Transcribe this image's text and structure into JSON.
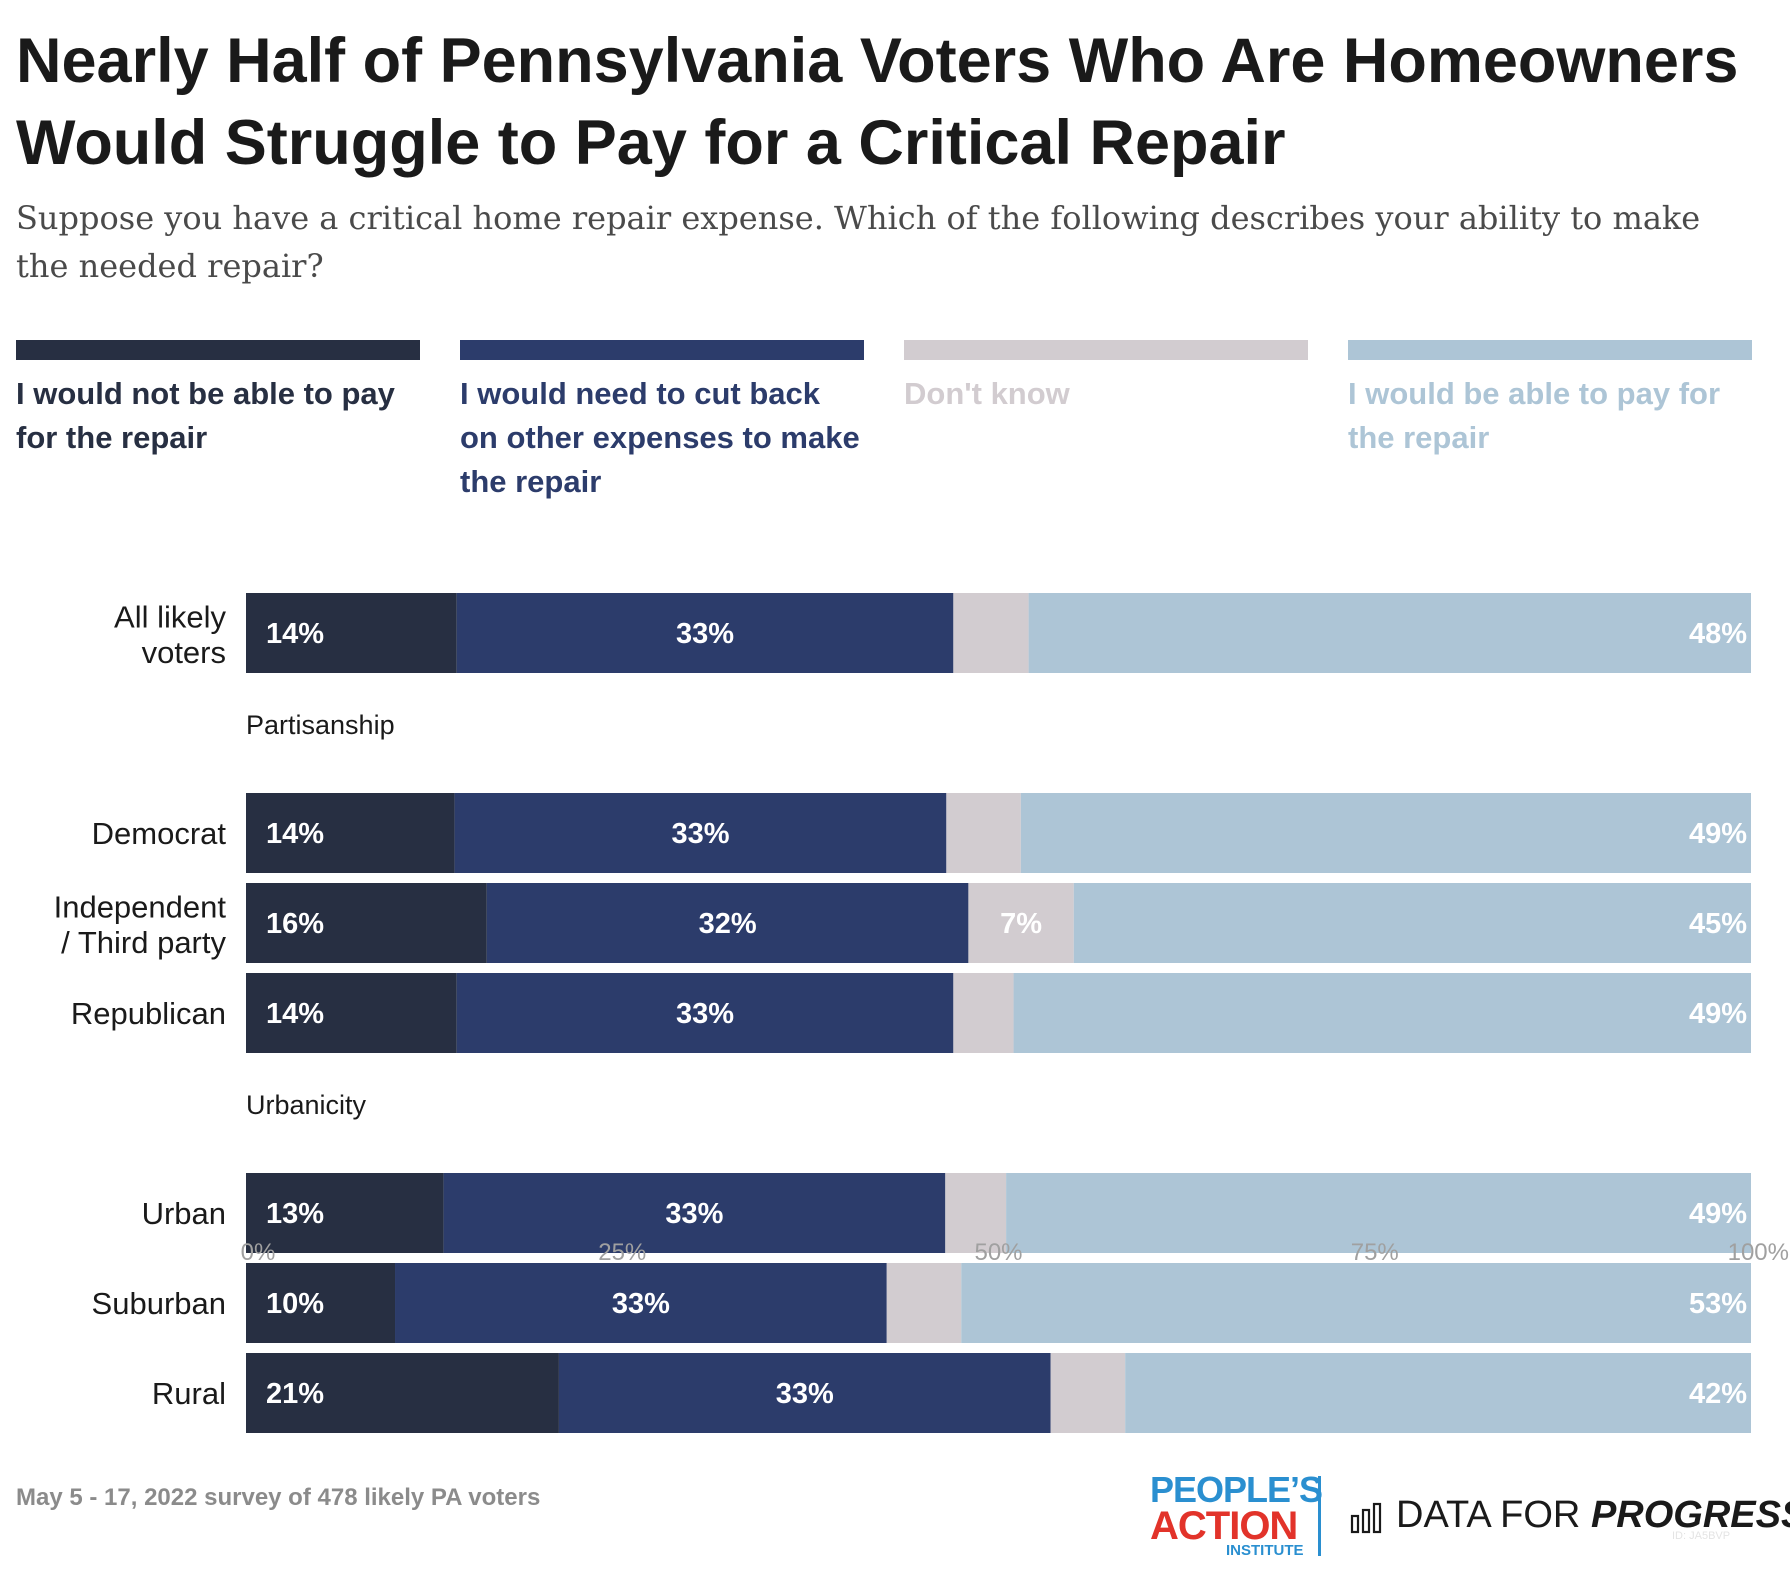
{
  "title": "Nearly Half of Pennsylvania Voters Who Are Homeowners Would Struggle to Pay for a Critical Repair",
  "subtitle": "Suppose you have a critical home repair expense. Which of the following describes your ability to make the needed repair?",
  "footer": {
    "note": "May 5 - 17, 2022 survey of 478 likely PA voters",
    "logo_peoples": "PEOPLE’S",
    "logo_action": "ACTION",
    "logo_institute": "INSTITUTE",
    "dfp_prefix": "DATA FOR ",
    "dfp_strong": "PROGRESS",
    "chart_id": "ID: JA5BVP"
  },
  "chart_data": {
    "type": "bar",
    "orientation": "horizontal",
    "stacked": true,
    "xlim": [
      0,
      100
    ],
    "x_ticks": [
      "0%",
      "25%",
      "50%",
      "75%",
      "100%"
    ],
    "legend_position": "top",
    "series": [
      {
        "name": "I would not be able to pay for the repair",
        "color": "#272f42",
        "label_color": "#ffffff"
      },
      {
        "name": "I would need to cut back on other expenses to make the repair",
        "color": "#2c3c6b",
        "label_color": "#ffffff"
      },
      {
        "name": "Don't know",
        "color": "#d2ccd0",
        "label_color": "#ffffff"
      },
      {
        "name": "I would be able to pay for the repair",
        "color": "#adc5d6",
        "label_color": "#ffffff"
      }
    ],
    "groups": [
      {
        "heading": "",
        "rows": [
          {
            "label": "All likely voters",
            "values": [
              14,
              33,
              5,
              48
            ],
            "labels": [
              "14%",
              "33%",
              "",
              "48%"
            ]
          }
        ]
      },
      {
        "heading": "Partisanship",
        "rows": [
          {
            "label": "Democrat",
            "values": [
              14,
              33,
              5,
              49
            ],
            "labels": [
              "14%",
              "33%",
              "",
              "49%"
            ]
          },
          {
            "label": "Independent / Third party",
            "values": [
              16,
              32,
              7,
              45
            ],
            "labels": [
              "16%",
              "32%",
              "7%",
              "45%"
            ]
          },
          {
            "label": "Republican",
            "values": [
              14,
              33,
              4,
              49
            ],
            "labels": [
              "14%",
              "33%",
              "",
              "49%"
            ]
          }
        ]
      },
      {
        "heading": "Urbanicity",
        "rows": [
          {
            "label": "Urban",
            "values": [
              13,
              33,
              4,
              49
            ],
            "labels": [
              "13%",
              "33%",
              "",
              "49%"
            ]
          },
          {
            "label": "Suburban",
            "values": [
              10,
              33,
              5,
              53
            ],
            "labels": [
              "10%",
              "33%",
              "",
              "53%"
            ]
          },
          {
            "label": "Rural",
            "values": [
              21,
              33,
              5,
              42
            ],
            "labels": [
              "21%",
              "33%",
              "",
              "42%"
            ]
          }
        ]
      }
    ]
  }
}
